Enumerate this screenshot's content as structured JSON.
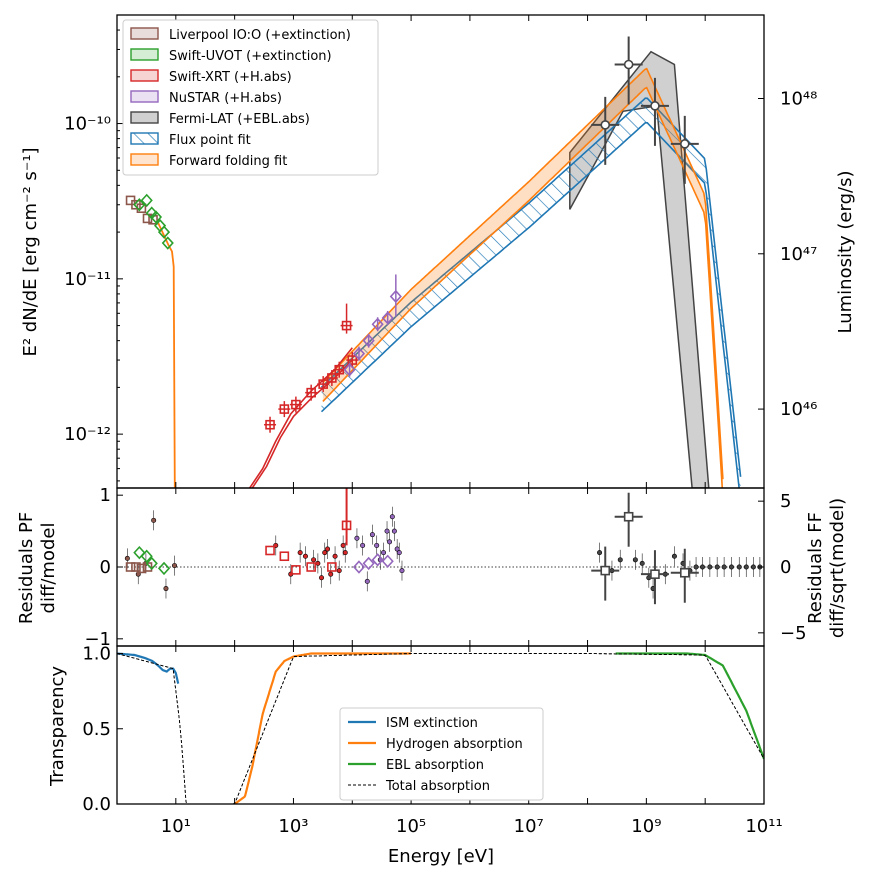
{
  "chart_data": [
    {
      "type": "line",
      "xscale": "log",
      "yscale": "log",
      "xlim": [
        1,
        100000000000
      ],
      "ylim": [
        4.5e-13,
        5e-10
      ],
      "ylabel": "E² dN/dE [erg cm⁻² s⁻¹]",
      "ylabel2": "Luminosity (erg/s)",
      "y_ticks": [
        "10⁻¹⁰",
        "10⁻¹¹",
        "10⁻¹²"
      ],
      "y2_ticks": [
        "10⁴⁸",
        "10⁴⁷",
        "10⁴⁶"
      ],
      "legend_position": "top-left",
      "legend": [
        {
          "label": "Liverpool IO:O (+extinction)",
          "color": "#8c564b"
        },
        {
          "label": "Swift-UVOT (+extinction)",
          "color": "#2ca02c"
        },
        {
          "label": "Swift-XRT (+H.abs)",
          "color": "#d62728"
        },
        {
          "label": "NuSTAR (+H.abs)",
          "color": "#9467bd"
        },
        {
          "label": "Fermi-LAT (+EBL.abs)",
          "color": "#444444"
        },
        {
          "label": "Flux point fit",
          "color": "#1f77b4"
        },
        {
          "label": "Forward folding fit",
          "color": "#ff7f0e"
        }
      ],
      "series": [
        {
          "name": "Liverpool IO:O (+extinction)",
          "x": [
            1.7,
            2.1,
            2.6,
            3.3,
            4.1
          ],
          "y": [
            3.2e-11,
            3e-11,
            2.85e-11,
            2.45e-11,
            2.4e-11
          ]
        },
        {
          "name": "Swift-UVOT (+extinction)",
          "x": [
            2.4,
            3.2,
            3.9,
            4.6,
            5.4,
            6.3,
            7.3
          ],
          "y": [
            3e-11,
            3.2e-11,
            2.65e-11,
            2.5e-11,
            2.2e-11,
            2e-11,
            1.7e-11
          ]
        },
        {
          "name": "Swift-XRT (+H.abs)",
          "x": [
            400,
            700,
            1100,
            2000,
            3200,
            4500,
            6000,
            8000,
            10000
          ],
          "y": [
            1.15e-12,
            1.45e-12,
            1.55e-12,
            1.85e-12,
            2.1e-12,
            2.3e-12,
            2.6e-12,
            5e-12,
            3e-12
          ]
        },
        {
          "name": "NuSTAR (+H.abs)",
          "x": [
            9000,
            13000,
            19000,
            27000,
            40000,
            55000
          ],
          "y": [
            2.6e-12,
            3.3e-12,
            4e-12,
            5.1e-12,
            5.6e-12,
            7.7e-12
          ]
        },
        {
          "name": "Fermi-LAT (+EBL.abs)",
          "x": [
            200000000,
            500000000,
            1400000000,
            4500000000
          ],
          "y": [
            9.8e-11,
            2.4e-10,
            1.3e-10,
            7.4e-11
          ]
        },
        {
          "name": "Flux point fit",
          "x": [
            3000,
            100000,
            10000000,
            1000000000,
            10000000000,
            40000000000
          ],
          "y": [
            1.7e-12,
            6e-12,
            2.6e-11,
            1.25e-10,
            5e-11,
            4.5e-13
          ]
        },
        {
          "name": "Forward folding fit",
          "x": [
            3000,
            100000,
            10000000,
            1000000000,
            10000000000,
            20000000000
          ],
          "y": [
            1.85e-12,
            7.5e-12,
            3.7e-11,
            2e-10,
            3e-11,
            4.5e-13
          ]
        }
      ]
    },
    {
      "type": "scatter",
      "xscale": "log",
      "xlim": [
        1,
        100000000000
      ],
      "ylim": [
        -1.1,
        1.1
      ],
      "ylim2": [
        -6,
        6
      ],
      "ylabel": "Residuals PF\ndiff/model",
      "ylabel2": "Residuals FF\ndiff/sqrt(model)",
      "y_ticks": [
        "−1",
        "0",
        "1"
      ],
      "y2_ticks": [
        "−5",
        "0",
        "5"
      ],
      "series": [
        {
          "name": "Liverpool IO:O (+extinction)",
          "x": [
            1.7,
            2.1,
            2.6,
            3.3
          ],
          "y": [
            0.0,
            0.0,
            -0.02,
            0.0
          ]
        },
        {
          "name": "Swift-UVOT (+extinction)",
          "x": [
            2.4,
            3.2,
            3.9,
            6.3
          ],
          "y": [
            0.2,
            0.15,
            0.05,
            -0.02
          ]
        },
        {
          "name": "Swift-XRT (+H.abs)",
          "x": [
            400,
            700,
            1100,
            2000,
            4500,
            8000
          ],
          "y": [
            0.23,
            0.15,
            -0.04,
            0.0,
            0.0,
            0.58
          ]
        },
        {
          "name": "NuSTAR (+H.abs)",
          "x": [
            13000,
            19000,
            27000,
            40000
          ],
          "y": [
            0.0,
            0.05,
            0.1,
            0.08
          ]
        },
        {
          "name": "Fermi-LAT (+EBL.abs)",
          "x": [
            200000000,
            500000000,
            1400000000,
            4500000000
          ],
          "y": [
            -0.05,
            0.7,
            -0.1,
            -0.08
          ]
        }
      ]
    },
    {
      "type": "line",
      "xscale": "log",
      "xlim": [
        1,
        100000000000
      ],
      "ylim": [
        0,
        1.05
      ],
      "xlabel": "Energy [eV]",
      "ylabel": "Transparency",
      "y_ticks": [
        "0.0",
        "0.5",
        "1.0"
      ],
      "x_ticks": [
        "10¹",
        "10³",
        "10⁵",
        "10⁷",
        "10⁹",
        "10¹¹"
      ],
      "legend_position": "lower-center",
      "legend": [
        {
          "label": "ISM extinction",
          "color": "#1f77b4"
        },
        {
          "label": "Hydrogen absorption",
          "color": "#ff7f0e"
        },
        {
          "label": "EBL absorption",
          "color": "#2ca02c"
        },
        {
          "label": "Total absorption",
          "color": "#000000"
        }
      ],
      "series": [
        {
          "name": "ISM extinction",
          "x": [
            1,
            2,
            3,
            4,
            5,
            6,
            7,
            8,
            9,
            10,
            11
          ],
          "y": [
            1.0,
            0.99,
            0.97,
            0.95,
            0.92,
            0.89,
            0.88,
            0.9,
            0.9,
            0.87,
            0.8
          ]
        },
        {
          "name": "Hydrogen absorption",
          "x": [
            100,
            150,
            200,
            300,
            500,
            700,
            1000,
            2000,
            5000,
            100000
          ],
          "y": [
            0.0,
            0.05,
            0.25,
            0.6,
            0.88,
            0.95,
            0.98,
            1.0,
            1.0,
            1.0
          ]
        },
        {
          "name": "EBL absorption",
          "x": [
            300000000,
            1000000000,
            5000000000,
            10000000000,
            20000000000,
            50000000000,
            100000000000
          ],
          "y": [
            1.0,
            1.0,
            1.0,
            0.99,
            0.92,
            0.62,
            0.3
          ]
        },
        {
          "name": "Total absorption",
          "x": [
            1,
            9,
            12,
            15,
            100,
            1000,
            100000,
            100000000,
            10000000000,
            100000000000
          ],
          "y": [
            1.0,
            0.9,
            0.5,
            0.0,
            0.0,
            0.98,
            1.0,
            1.0,
            0.99,
            0.3
          ]
        }
      ]
    }
  ]
}
